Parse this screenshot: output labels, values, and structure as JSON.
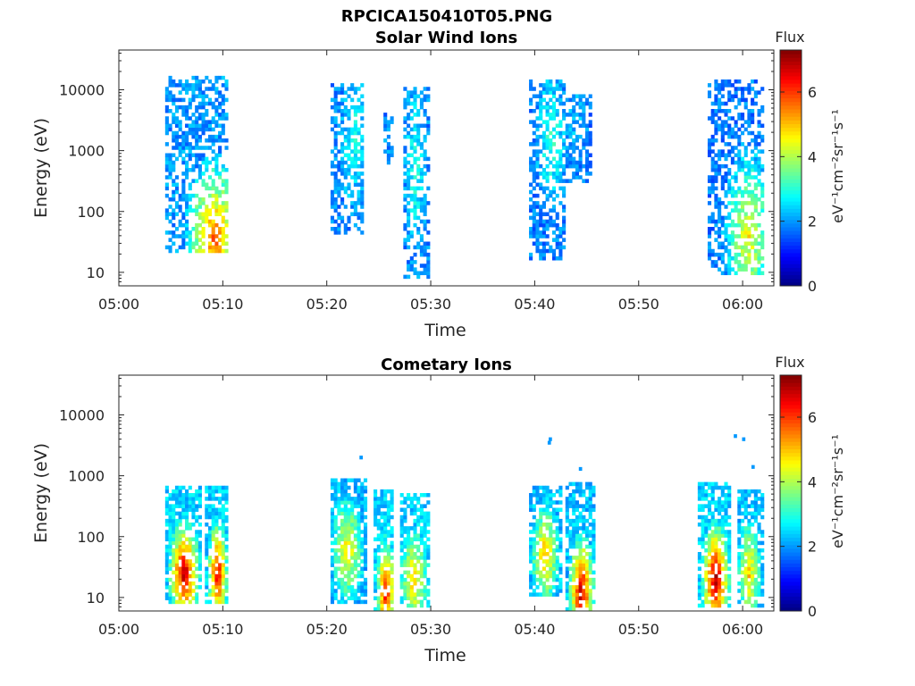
{
  "figure": {
    "title": "RPCICA150410T05.PNG"
  },
  "chart_data": [
    {
      "type": "heatmap",
      "title": "Solar Wind Ions",
      "xlabel": "Time",
      "ylabel": "Energy (eV)",
      "xticks": [
        "05:00",
        "05:10",
        "05:20",
        "05:30",
        "05:40",
        "05:50",
        "06:00"
      ],
      "xlim_min": [
        0,
        63
      ],
      "yscale": "log",
      "ylim": [
        6,
        45000
      ],
      "yticks": [
        10,
        100,
        1000,
        10000
      ],
      "ytick_labels": [
        "10",
        "100",
        "1000",
        "10000"
      ],
      "colorbar": {
        "title": "Flux",
        "unit": "eV⁻¹cm⁻²sr⁻¹s⁻¹",
        "range": [
          0,
          7.3
        ],
        "ticks": [
          0,
          2,
          4,
          6
        ],
        "colormap": "jet"
      },
      "blobs": [
        {
          "t": [
            4.5,
            10.5
          ],
          "e": [
            20,
            18000
          ],
          "peak_t": 9.2,
          "peak_e": 35,
          "peak_flux": 5.8,
          "hi_flux": 2.0
        },
        {
          "t": [
            20.5,
            23.5
          ],
          "e": [
            40,
            13000
          ],
          "peak_t": 22.6,
          "peak_e": 1500,
          "peak_flux": 3.0,
          "hi_flux": 1.9
        },
        {
          "t": [
            25.5,
            26.5
          ],
          "e": [
            600,
            4000
          ],
          "peak_t": 26.0,
          "peak_e": 2000,
          "peak_flux": 2.2,
          "hi_flux": 1.8
        },
        {
          "t": [
            27.5,
            29.8
          ],
          "e": [
            8,
            11000
          ],
          "peak_t": 28.5,
          "peak_e": 500,
          "peak_flux": 3.0,
          "hi_flux": 1.9
        },
        {
          "t": [
            39.3,
            42.8
          ],
          "e": [
            15,
            14000
          ],
          "peak_t": 41.6,
          "peak_e": 1500,
          "peak_flux": 3.1,
          "hi_flux": 1.8
        },
        {
          "t": [
            43.0,
            45.5
          ],
          "e": [
            300,
            9000
          ],
          "peak_t": 44.0,
          "peak_e": 3000,
          "peak_flux": 2.3,
          "hi_flux": 1.8
        },
        {
          "t": [
            56.5,
            62.0
          ],
          "e": [
            9,
            15000
          ],
          "peak_t": 60.6,
          "peak_e": 40,
          "peak_flux": 4.6,
          "hi_flux": 1.8
        }
      ]
    },
    {
      "type": "heatmap",
      "title": "Cometary Ions",
      "xlabel": "Time",
      "ylabel": "Energy (eV)",
      "xticks": [
        "05:00",
        "05:10",
        "05:20",
        "05:30",
        "05:40",
        "05:50",
        "06:00"
      ],
      "xlim_min": [
        0,
        63
      ],
      "yscale": "log",
      "ylim": [
        6,
        45000
      ],
      "yticks": [
        10,
        100,
        1000,
        10000
      ],
      "ytick_labels": [
        "10",
        "100",
        "1000",
        "10000"
      ],
      "colorbar": {
        "title": "Flux",
        "unit": "eV⁻¹cm⁻²sr⁻¹s⁻¹",
        "range": [
          0,
          7.3
        ],
        "ticks": [
          0,
          2,
          4,
          6
        ],
        "colormap": "jet"
      },
      "blobs": [
        {
          "t": [
            4.5,
            7.8
          ],
          "e": [
            8,
            700
          ],
          "peak_t": 6.3,
          "peak_e": 25,
          "peak_flux": 7.0,
          "hi_flux": 2.4
        },
        {
          "t": [
            8.3,
            10.5
          ],
          "e": [
            8,
            700
          ],
          "peak_t": 9.5,
          "peak_e": 25,
          "peak_flux": 6.6,
          "hi_flux": 2.4
        },
        {
          "t": [
            20.5,
            24.0
          ],
          "e": [
            8,
            900
          ],
          "peak_t": 22.0,
          "peak_e": 60,
          "peak_flux": 4.8,
          "hi_flux": 2.2
        },
        {
          "t": [
            24.5,
            26.5
          ],
          "e": [
            6,
            600
          ],
          "peak_t": 25.7,
          "peak_e": 12,
          "peak_flux": 6.6,
          "hi_flux": 2.4
        },
        {
          "t": [
            27.0,
            30.0
          ],
          "e": [
            7,
            500
          ],
          "peak_t": 28.4,
          "peak_e": 20,
          "peak_flux": 5.0,
          "hi_flux": 2.4
        },
        {
          "t": [
            39.5,
            42.5
          ],
          "e": [
            10,
            700
          ],
          "peak_t": 41.0,
          "peak_e": 50,
          "peak_flux": 5.2,
          "hi_flux": 2.3
        },
        {
          "t": [
            43.0,
            45.8
          ],
          "e": [
            6,
            800
          ],
          "peak_t": 44.5,
          "peak_e": 12,
          "peak_flux": 7.0,
          "hi_flux": 2.3
        },
        {
          "t": [
            55.8,
            58.8
          ],
          "e": [
            7,
            800
          ],
          "peak_t": 57.4,
          "peak_e": 20,
          "peak_flux": 7.2,
          "hi_flux": 2.4
        },
        {
          "t": [
            59.5,
            62.0
          ],
          "e": [
            7,
            600
          ],
          "peak_t": 60.6,
          "peak_e": 25,
          "peak_flux": 5.0,
          "hi_flux": 2.3
        }
      ],
      "sparse_points": [
        {
          "t": 23.3,
          "e": 2000
        },
        {
          "t": 41.4,
          "e": 3500
        },
        {
          "t": 41.5,
          "e": 4000
        },
        {
          "t": 59.3,
          "e": 4500
        },
        {
          "t": 60.1,
          "e": 4000
        },
        {
          "t": 44.4,
          "e": 1300
        },
        {
          "t": 61.0,
          "e": 1400
        }
      ]
    }
  ]
}
